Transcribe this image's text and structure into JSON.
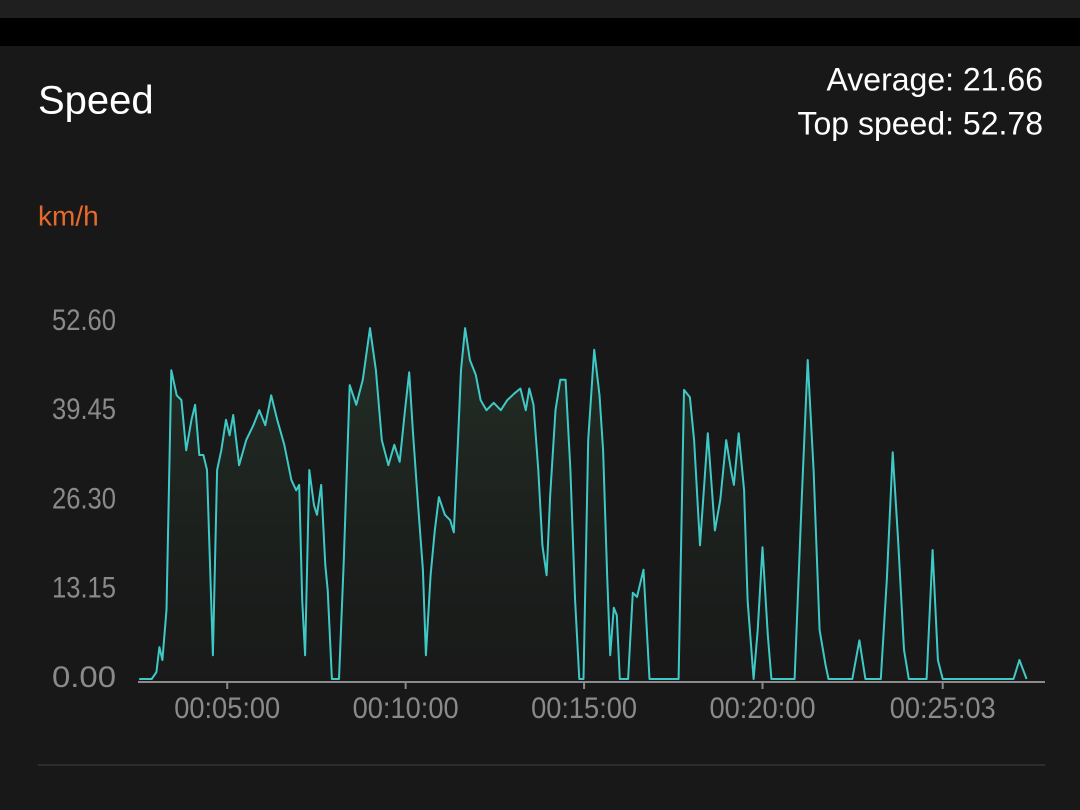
{
  "chart_data": {
    "type": "line",
    "title": "Speed",
    "stats": [
      "Average: 21.66",
      "Top speed: 52.78"
    ],
    "y_label": "km/h",
    "x": [
      152,
      173,
      181,
      186,
      191,
      198,
      206,
      215,
      223,
      231,
      240,
      246,
      253,
      260,
      266,
      276,
      283,
      290,
      298,
      304,
      310,
      320,
      332,
      344,
      354,
      364,
      374,
      384,
      396,
      408,
      416,
      421,
      426,
      431,
      438,
      446,
      451,
      458,
      465,
      469,
      476,
      488,
      496,
      506,
      517,
      528,
      540,
      550,
      560,
      571,
      581,
      590,
      599,
      606,
      612,
      621,
      629,
      634,
      642,
      649,
      656,
      666,
      675,
      681,
      688,
      693,
      700,
      708,
      718,
      726,
      736,
      748,
      760,
      771,
      783,
      793,
      802,
      808,
      815,
      823,
      830,
      837,
      843,
      852,
      860,
      869,
      877,
      885,
      892,
      899,
      907,
      917,
      926,
      932,
      939,
      944,
      950,
      955,
      960,
      974,
      982,
      989,
      1000,
      1010,
      1059,
      1068,
      1078,
      1085,
      1095,
      1108,
      1120,
      1129,
      1139,
      1147,
      1152,
      1160,
      1169,
      1175,
      1185,
      1192,
      1200,
      1209,
      1215,
      1254,
      1266,
      1276,
      1286,
      1296,
      1306,
      1311,
      1351,
      1363,
      1373,
      1399,
      1409,
      1419,
      1428,
      1438,
      1446,
      1476,
      1486,
      1495,
      1503,
      1622,
      1632,
      1644
    ],
    "series": [
      {
        "color": "#3fc9c6",
        "values": [
          0,
          0,
          1.0,
          4.7,
          2.8,
          10.2,
          45.5,
          41.8,
          41.1,
          33.7,
          38.2,
          40.4,
          33.0,
          33.0,
          30.8,
          3.5,
          30.8,
          33.7,
          38.2,
          35.9,
          38.9,
          31.5,
          35.2,
          37.4,
          39.6,
          37.4,
          41.8,
          38.2,
          34.5,
          29.3,
          27.8,
          28.6,
          11.6,
          3.5,
          30.8,
          25.6,
          24.2,
          28.6,
          16.8,
          13.1,
          0,
          0,
          17.5,
          43.3,
          40.4,
          44.1,
          51.7,
          45.5,
          35.2,
          31.5,
          34.5,
          32.0,
          39.6,
          45.2,
          36.7,
          25.6,
          16.1,
          3.5,
          15.3,
          21.9,
          26.8,
          24.2,
          23.4,
          21.6,
          35.2,
          45.5,
          51.7,
          47.0,
          44.8,
          41.1,
          39.6,
          40.7,
          39.6,
          41.1,
          42.1,
          42.8,
          39.6,
          42.8,
          40.4,
          30.8,
          19.7,
          15.3,
          27.1,
          39.6,
          44.1,
          44.1,
          30.8,
          11.6,
          0,
          0,
          35.2,
          48.5,
          41.8,
          33.7,
          14.6,
          3.5,
          10.5,
          9.4,
          0,
          0,
          12.7,
          12.1,
          16.1,
          0,
          0,
          42.6,
          41.5,
          35.2,
          19.7,
          36.2,
          21.9,
          26.4,
          35.2,
          30.8,
          28.6,
          36.2,
          27.8,
          11.6,
          0,
          7.2,
          19.4,
          6.5,
          0,
          0,
          26.4,
          47.0,
          30.8,
          7.2,
          2.1,
          0,
          0,
          5.7,
          0,
          0,
          14.6,
          33.4,
          20.5,
          4.3,
          0,
          0,
          19.0,
          2.8,
          0,
          0,
          2.8,
          0
        ]
      }
    ],
    "xlim": [
      150,
      1675
    ],
    "xticks": [
      {
        "value": 300,
        "label": "00:05:00"
      },
      {
        "value": 600,
        "label": "00:10:00"
      },
      {
        "value": 900,
        "label": "00:15:00"
      },
      {
        "value": 1200,
        "label": "00:20:00"
      },
      {
        "value": 1503,
        "label": "00:25:03"
      }
    ],
    "ylim": [
      0,
      52.6
    ],
    "yticks": [
      {
        "value": 0,
        "label": "0.00"
      },
      {
        "value": 13.15,
        "label": "13.15"
      },
      {
        "value": 26.3,
        "label": "26.30"
      },
      {
        "value": 39.45,
        "label": "39.45"
      },
      {
        "value": 52.6,
        "label": "52.60"
      }
    ],
    "grid": false
  }
}
